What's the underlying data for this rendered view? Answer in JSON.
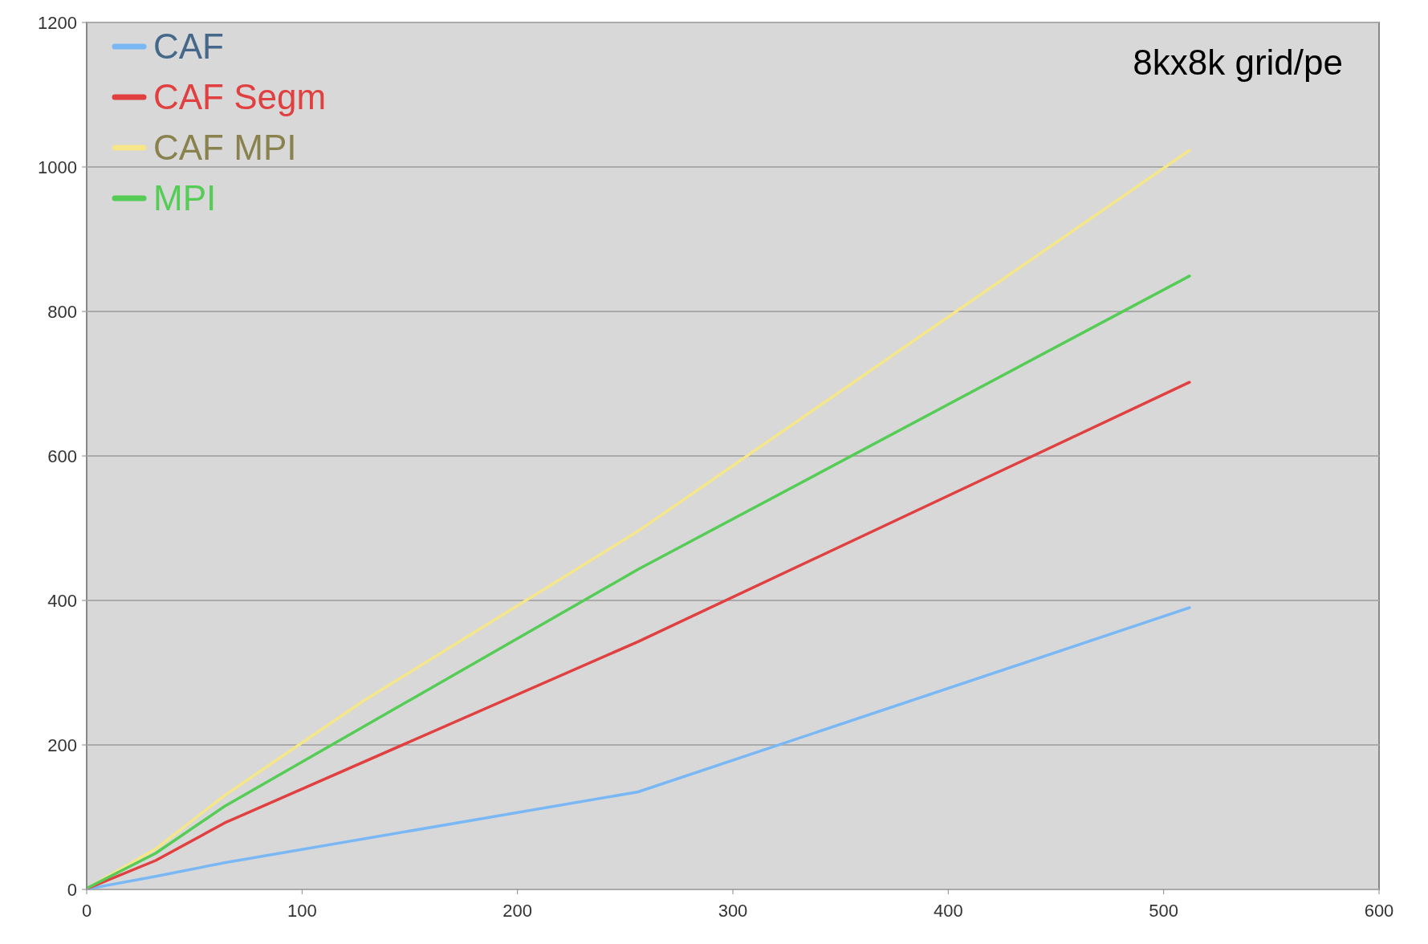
{
  "chart_data": {
    "type": "line",
    "x": [
      1,
      32,
      64,
      256,
      512
    ],
    "series": [
      {
        "name": "CAF",
        "color": "#7ab8f5",
        "values": [
          1,
          18,
          37,
          135,
          390
        ]
      },
      {
        "name": "CAF Segm",
        "color": "#e04040",
        "values": [
          2,
          40,
          92,
          343,
          702
        ]
      },
      {
        "name": "CAF MPI",
        "color": "#f5e68a",
        "x": [
          1,
          32,
          64,
          128,
          256,
          512
        ],
        "values": [
          3,
          56,
          130,
          260,
          496,
          1023
        ]
      },
      {
        "name": "MPI",
        "color": "#55cc55",
        "values": [
          3,
          50,
          115,
          443,
          849
        ]
      }
    ],
    "xlim": [
      0,
      600
    ],
    "xticks": [
      0,
      100,
      200,
      300,
      400,
      500,
      600
    ],
    "ylim": [
      0,
      1200
    ],
    "yticks": [
      0,
      200,
      400,
      600,
      800,
      1000,
      1200
    ],
    "grid": "y",
    "legend": "top left",
    "marker": "none",
    "line_style": "solid",
    "annotations": [
      "8kx8k grid/pe"
    ]
  }
}
